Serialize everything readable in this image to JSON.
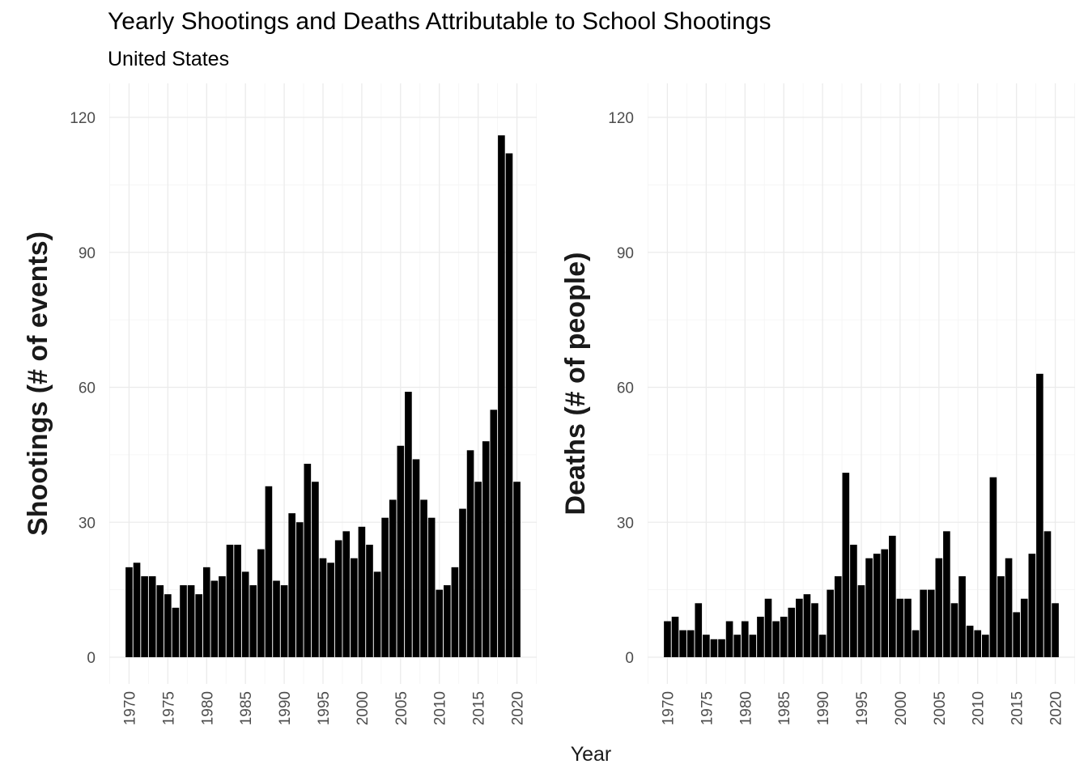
{
  "title": "Yearly Shootings and Deaths Attributable to School Shootings",
  "subtitle": "United States",
  "xlabel": "Year",
  "chart_data": [
    {
      "type": "bar",
      "ylabel": "Shootings (# of events)",
      "ylim": [
        0,
        120
      ],
      "yticks": [
        "0",
        "30",
        "60",
        "90",
        "120"
      ],
      "xticks": [
        "1970",
        "1975",
        "1980",
        "1985",
        "1990",
        "1995",
        "2000",
        "2005",
        "2010",
        "2015",
        "2020"
      ],
      "grid": true,
      "color": "#000000",
      "x": [
        1970,
        1971,
        1972,
        1973,
        1974,
        1975,
        1976,
        1977,
        1978,
        1979,
        1980,
        1981,
        1982,
        1983,
        1984,
        1985,
        1986,
        1987,
        1988,
        1989,
        1990,
        1991,
        1992,
        1993,
        1994,
        1995,
        1996,
        1997,
        1998,
        1999,
        2000,
        2001,
        2002,
        2003,
        2004,
        2005,
        2006,
        2007,
        2008,
        2009,
        2010,
        2011,
        2012,
        2013,
        2014,
        2015,
        2016,
        2017,
        2018,
        2019,
        2020
      ],
      "values": [
        20,
        21,
        18,
        18,
        16,
        14,
        11,
        16,
        16,
        14,
        20,
        17,
        18,
        25,
        25,
        19,
        16,
        24,
        38,
        17,
        16,
        32,
        30,
        43,
        39,
        22,
        21,
        26,
        28,
        22,
        29,
        25,
        19,
        31,
        35,
        47,
        59,
        44,
        35,
        31,
        15,
        16,
        20,
        33,
        46,
        39,
        48,
        55,
        116,
        112,
        39
      ]
    },
    {
      "type": "bar",
      "ylabel": "Deaths (# of people)",
      "ylim": [
        0,
        120
      ],
      "yticks": [
        "0",
        "30",
        "60",
        "90",
        "120"
      ],
      "xticks": [
        "1970",
        "1975",
        "1980",
        "1985",
        "1990",
        "1995",
        "2000",
        "2005",
        "2010",
        "2015",
        "2020"
      ],
      "grid": true,
      "color": "#000000",
      "x": [
        1970,
        1971,
        1972,
        1973,
        1974,
        1975,
        1976,
        1977,
        1978,
        1979,
        1980,
        1981,
        1982,
        1983,
        1984,
        1985,
        1986,
        1987,
        1988,
        1989,
        1990,
        1991,
        1992,
        1993,
        1994,
        1995,
        1996,
        1997,
        1998,
        1999,
        2000,
        2001,
        2002,
        2003,
        2004,
        2005,
        2006,
        2007,
        2008,
        2009,
        2010,
        2011,
        2012,
        2013,
        2014,
        2015,
        2016,
        2017,
        2018,
        2019,
        2020
      ],
      "values": [
        8,
        9,
        6,
        6,
        12,
        5,
        4,
        4,
        8,
        5,
        8,
        5,
        9,
        13,
        8,
        9,
        11,
        13,
        14,
        12,
        5,
        15,
        18,
        41,
        25,
        16,
        22,
        23,
        24,
        27,
        13,
        13,
        6,
        15,
        15,
        22,
        28,
        12,
        18,
        7,
        6,
        5,
        40,
        18,
        22,
        10,
        13,
        23,
        63,
        28,
        12
      ]
    }
  ]
}
